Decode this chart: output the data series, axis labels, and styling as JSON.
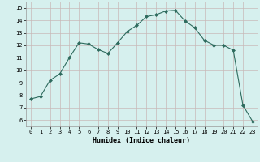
{
  "x": [
    0,
    1,
    2,
    3,
    4,
    5,
    6,
    7,
    8,
    9,
    10,
    11,
    12,
    13,
    14,
    15,
    16,
    17,
    18,
    19,
    20,
    21,
    22,
    23
  ],
  "y": [
    7.7,
    7.9,
    9.2,
    9.7,
    11.0,
    12.2,
    12.1,
    11.65,
    11.35,
    12.2,
    13.1,
    13.6,
    14.3,
    14.45,
    14.75,
    14.8,
    13.95,
    13.4,
    12.4,
    12.0,
    12.0,
    11.6,
    7.2,
    5.9
  ],
  "xlabel": "Humidex (Indice chaleur)",
  "ylim": [
    5.5,
    15.5
  ],
  "xlim": [
    -0.5,
    23.5
  ],
  "yticks": [
    6,
    7,
    8,
    9,
    10,
    11,
    12,
    13,
    14,
    15
  ],
  "xticks": [
    0,
    1,
    2,
    3,
    4,
    5,
    6,
    7,
    8,
    9,
    10,
    11,
    12,
    13,
    14,
    15,
    16,
    17,
    18,
    19,
    20,
    21,
    22,
    23
  ],
  "line_color": "#2e6b5e",
  "marker": "D",
  "marker_size": 2.0,
  "bg_color": "#d6f0ee",
  "grid_color": "#c8b8b8",
  "axis_fontsize": 5.5,
  "tick_fontsize": 5.0,
  "xlabel_fontsize": 6.0
}
